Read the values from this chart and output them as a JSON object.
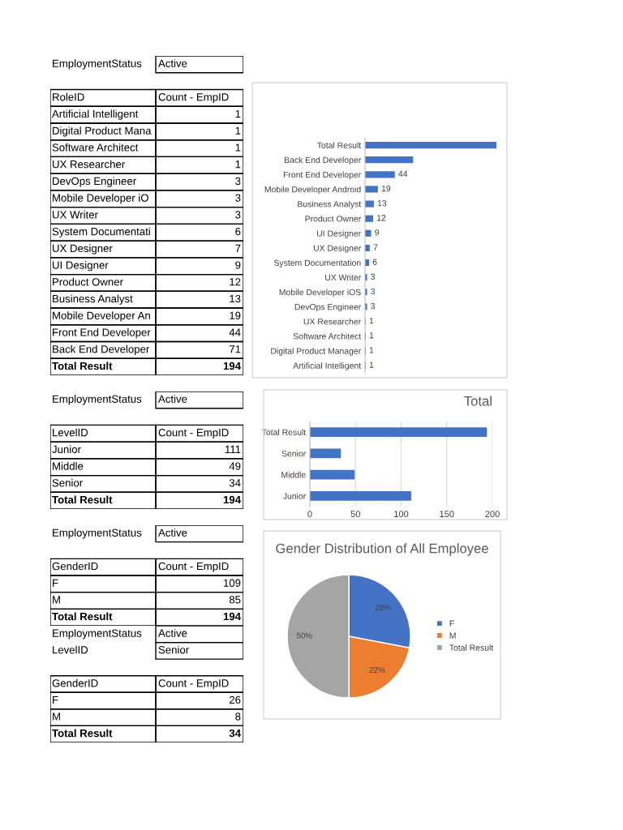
{
  "chart_data": [
    {
      "type": "other",
      "categories": [
        "EmploymentStatus",
        null,
        "RoleID",
        "Artificial Intelligent",
        "Digital Product Mana",
        "Software Architect",
        "UX Researcher",
        "DevOps Engineer",
        "Mobile Developer iO",
        "UX Writer",
        "System Documentati",
        "UX Designer",
        "UI Designer",
        "Product Owner",
        "Business Analyst",
        "Mobile Developer An",
        "Front End Developer",
        "Back End Developer",
        "Total Result"
      ],
      "value_labels": [
        "Active",
        null,
        "Count - EmpID",
        "1",
        "1",
        "1",
        "1",
        "3",
        "3",
        "3",
        "6",
        "7",
        "9",
        "12",
        "13",
        "19",
        "44",
        "71",
        "194"
      ]
    },
    {
      "type": "bar",
      "orientation": "horizontal",
      "color": "#4472c4",
      "categories": [
        "Total Result",
        "Back End Developer",
        "Front End Developer",
        "Mobile Developer Android",
        "Business Analyst",
        "Product Owner",
        "UI Designer",
        "UX Designer",
        "System Documentation",
        "UX Writer",
        "Mobile Developer iOS",
        "DevOps Engineer",
        "UX Researcher",
        "Software Architect",
        "Digital Product Manager",
        "Artificial Intelligent"
      ],
      "values": [
        194,
        71,
        44,
        19,
        13,
        12,
        9,
        7,
        6,
        3,
        3,
        3,
        1,
        1,
        1,
        1
      ],
      "value_labels": [
        null,
        null,
        "44",
        "19",
        "13",
        "12",
        "9",
        "7",
        "6",
        "3",
        "3",
        "3",
        "1",
        "1",
        "1",
        "1"
      ]
    },
    {
      "type": "other",
      "categories": [
        "EmploymentStatus",
        null,
        "LevelID",
        "Junior",
        "Middle",
        "Senior",
        "Total Result"
      ],
      "value_labels": [
        "Active",
        null,
        "Count - EmpID",
        "111",
        "49",
        "34",
        "194"
      ]
    },
    {
      "type": "bar",
      "orientation": "horizontal",
      "title": "Total",
      "color": "#4472c4",
      "categories": [
        "Total Result",
        "Senior",
        "Middle",
        "Junior"
      ],
      "values": [
        194,
        34,
        49,
        111
      ],
      "xlim": [
        0,
        200
      ],
      "xticks": [
        0,
        50,
        100,
        150,
        200
      ],
      "grid": "x"
    },
    {
      "type": "other",
      "categories": [
        "EmploymentStatus",
        null,
        "GenderID",
        "F",
        "M",
        "Total Result"
      ],
      "value_labels": [
        "Active",
        null,
        "Count - EmpID",
        "109",
        "85",
        "194"
      ]
    },
    {
      "type": "pie",
      "title": "Gender Distribution of All Employee",
      "categories": [
        "F",
        "M",
        "Total Result"
      ],
      "values": [
        28,
        22,
        50
      ],
      "colors": [
        "#4472c4",
        "#ed7d31",
        "#a5a5a5"
      ],
      "value_labels": [
        "28%",
        "22%",
        "50%"
      ],
      "legend": "right"
    },
    {
      "type": "other",
      "categories": [
        "EmploymentStatus",
        "LevelID",
        null,
        "GenderID",
        "F",
        "M",
        "Total Result"
      ],
      "value_labels": [
        "Active",
        "Senior",
        null,
        "Count - EmpID",
        "26",
        "8",
        "34"
      ]
    }
  ]
}
